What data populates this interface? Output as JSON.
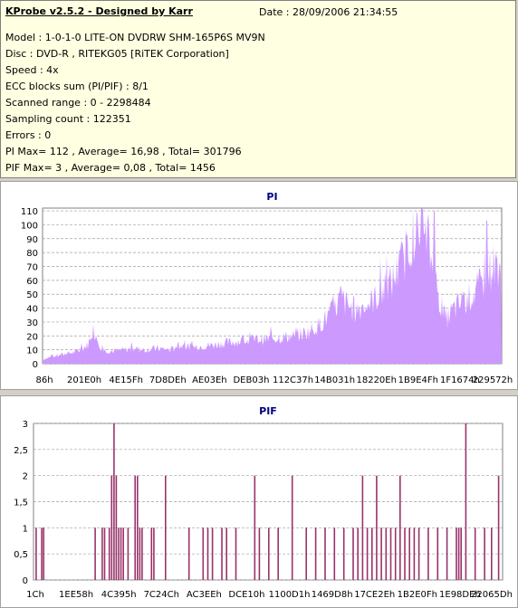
{
  "header": {
    "title": "KProbe v2.5.2 - Designed by Karr",
    "date": "Date : 28/09/2006 21:34:55"
  },
  "info_lines": [
    "Model : 1-0-1-0 LITE-ON DVDRW SHM-165P6S MV9N",
    "Disc : DVD-R , RITEKG05 [RiTEK Corporation]",
    "Speed : 4x",
    "ECC blocks sum (PI/PIF) : 8/1",
    "Scanned range : 0 - 2298484",
    "Sampling count : 122351",
    "Errors : 0",
    "PI Max= 112 , Average= 16,98 , Total= 301796",
    "PIF Max= 3 , Average= 0,08 , Total= 1456"
  ],
  "colors": {
    "pi_fill": "#cc99ff",
    "pif_bar": "#99336a",
    "title": "#000080",
    "grid": "#a0a0a0",
    "info_bg": "#ffffe1"
  },
  "chart_data": [
    {
      "type": "area",
      "title": "PI",
      "ylim": [
        0,
        112
      ],
      "yticks": [
        0,
        10,
        20,
        30,
        40,
        50,
        60,
        70,
        80,
        90,
        100,
        110
      ],
      "xticks": [
        "86h",
        "201E0h",
        "4E15Fh",
        "7D8DEh",
        "AE03Eh",
        "DEB03h",
        "112C37h",
        "14B031h",
        "18220Eh",
        "1B9E4Fh",
        "1F1674h",
        "229572h"
      ],
      "grid": true,
      "x": [
        0,
        0.02,
        0.05,
        0.08,
        0.1,
        0.11,
        0.12,
        0.13,
        0.15,
        0.18,
        0.2,
        0.22,
        0.25,
        0.28,
        0.3,
        0.33,
        0.36,
        0.4,
        0.45,
        0.5,
        0.55,
        0.58,
        0.6,
        0.62,
        0.64,
        0.65,
        0.66,
        0.68,
        0.7,
        0.72,
        0.74,
        0.76,
        0.78,
        0.8,
        0.81,
        0.82,
        0.83,
        0.84,
        0.85,
        0.86,
        0.87,
        0.88,
        0.9,
        0.92,
        0.94,
        0.96,
        0.98,
        1.0
      ],
      "values": [
        3,
        5,
        7,
        9,
        14,
        25,
        18,
        10,
        9,
        10,
        11,
        10,
        11,
        10,
        13,
        12,
        13,
        15,
        17,
        18,
        20,
        23,
        27,
        33,
        40,
        48,
        44,
        38,
        42,
        45,
        52,
        58,
        70,
        85,
        95,
        90,
        80,
        92,
        70,
        55,
        40,
        32,
        40,
        45,
        50,
        58,
        70,
        72
      ],
      "peaks": [
        {
          "x": 0.83,
          "y": 112
        },
        {
          "x": 0.855,
          "y": 110
        },
        {
          "x": 0.97,
          "y": 103
        }
      ]
    },
    {
      "type": "bar",
      "title": "PIF",
      "ylim": [
        0,
        3
      ],
      "yticks": [
        "0",
        "0,5",
        "1",
        "1,5",
        "2",
        "2,5",
        "3"
      ],
      "xticks": [
        "1Ch",
        "1EE58h",
        "4C395h",
        "7C24Ch",
        "AC3EEh",
        "DCE10h",
        "1100D1h",
        "1469D8h",
        "17CE2Eh",
        "1B2E0Fh",
        "1E98DEh",
        "22065Dh"
      ],
      "grid": true,
      "x": [
        0.004,
        0.016,
        0.02,
        0.13,
        0.145,
        0.15,
        0.16,
        0.165,
        0.17,
        0.175,
        0.18,
        0.185,
        0.19,
        0.215,
        0.22,
        0.225,
        0.23,
        0.2,
        0.25,
        0.255,
        0.28,
        0.33,
        0.36,
        0.37,
        0.38,
        0.4,
        0.41,
        0.43,
        0.47,
        0.48,
        0.5,
        0.52,
        0.55,
        0.58,
        0.6,
        0.62,
        0.64,
        0.66,
        0.68,
        0.69,
        0.7,
        0.71,
        0.72,
        0.73,
        0.74,
        0.75,
        0.76,
        0.77,
        0.78,
        0.79,
        0.8,
        0.81,
        0.82,
        0.84,
        0.86,
        0.88,
        0.9,
        0.905,
        0.91,
        0.92,
        0.94,
        0.96,
        0.975,
        0.99
      ],
      "values": [
        1,
        1,
        1,
        1,
        1,
        1,
        1,
        2,
        3,
        2,
        1,
        1,
        1,
        2,
        2,
        1,
        1,
        1,
        1,
        1,
        2,
        1,
        1,
        1,
        1,
        1,
        1,
        1,
        2,
        1,
        1,
        1,
        2,
        1,
        1,
        1,
        1,
        1,
        1,
        1,
        2,
        1,
        1,
        2,
        1,
        1,
        1,
        1,
        2,
        1,
        1,
        1,
        1,
        1,
        1,
        1,
        1,
        1,
        1,
        3,
        1,
        1,
        1,
        2
      ]
    }
  ]
}
